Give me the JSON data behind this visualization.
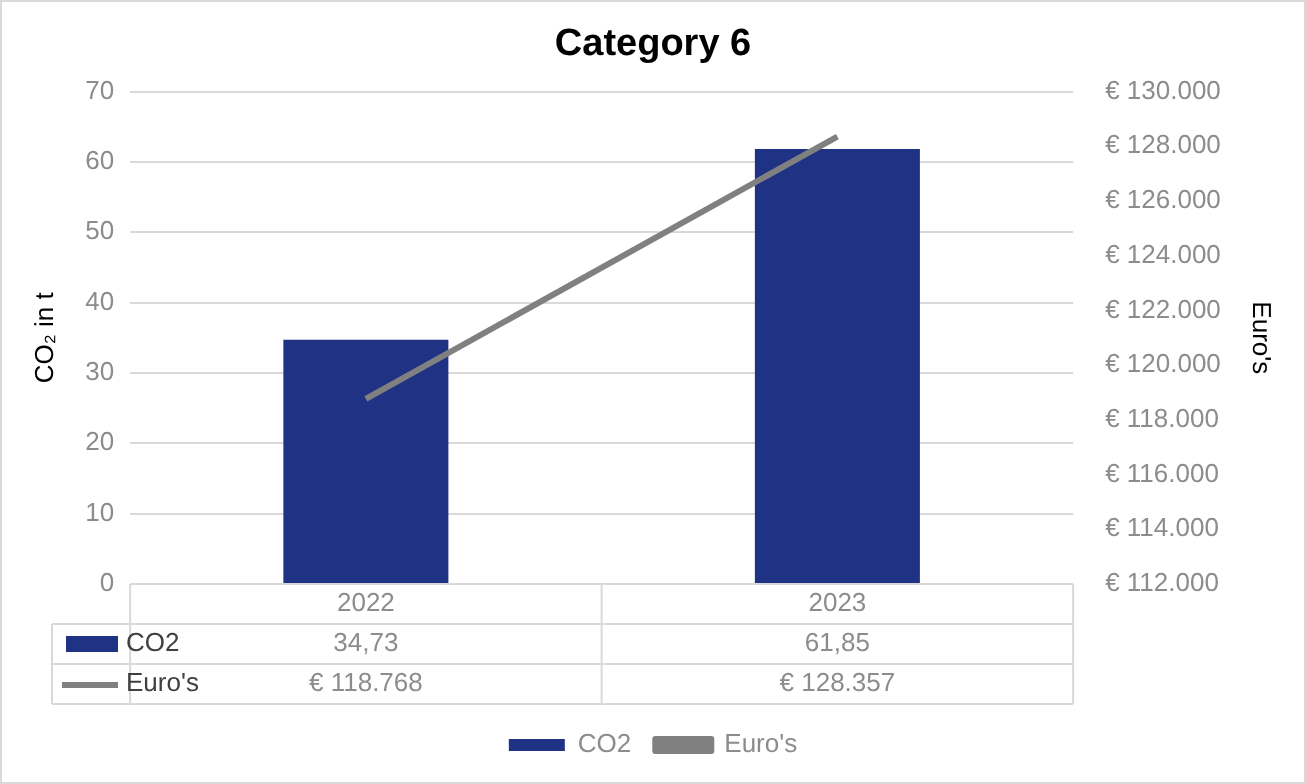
{
  "chart_data": {
    "type": "bar",
    "title": "Category 6",
    "ylabel": "CO₂ in t",
    "y2label": "Euro's",
    "categories": [
      "2022",
      "2023"
    ],
    "series": [
      {
        "name": "CO2",
        "color": "#1f3283",
        "values": [
          34.73,
          61.85
        ],
        "value_labels": [
          "34,73",
          "61,85"
        ]
      },
      {
        "name": "Euro's",
        "type": "line",
        "axis": "y2",
        "color": "#808080",
        "values": [
          118768,
          128357
        ],
        "value_labels": [
          "€ 118.768",
          "€ 128.357"
        ],
        "marker": "none",
        "line_style": "solid"
      }
    ],
    "ylim": [
      0,
      70
    ],
    "yticks": [
      0,
      10,
      20,
      30,
      40,
      50,
      60,
      70
    ],
    "y2lim": [
      112000,
      130000
    ],
    "y2ticks": [
      {
        "value": 112000,
        "label": "€ 112.000"
      },
      {
        "value": 114000,
        "label": "€ 114.000"
      },
      {
        "value": 116000,
        "label": "€ 116.000"
      },
      {
        "value": 118000,
        "label": "€ 118.000"
      },
      {
        "value": 120000,
        "label": "€ 120.000"
      },
      {
        "value": 122000,
        "label": "€ 122.000"
      },
      {
        "value": 124000,
        "label": "€ 124.000"
      },
      {
        "value": 126000,
        "label": "€ 126.000"
      },
      {
        "value": 128000,
        "label": "€ 128.000"
      },
      {
        "value": 130000,
        "label": "€ 130.000"
      }
    ],
    "grid": "y",
    "legend": "bottom"
  }
}
